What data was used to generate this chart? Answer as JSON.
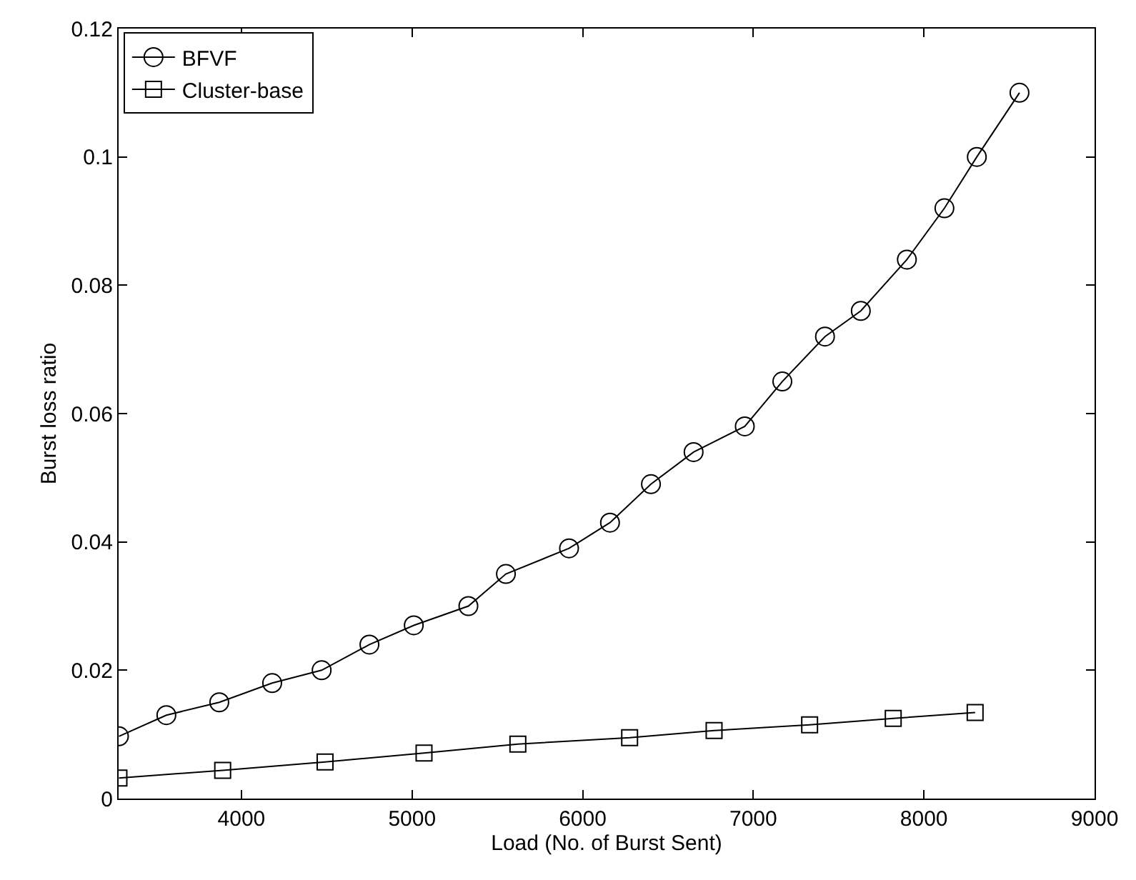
{
  "chart_data": {
    "type": "line",
    "xlabel": "Load (No. of Burst Sent)",
    "ylabel": "Burst loss ratio",
    "xlim": [
      3280,
      9000
    ],
    "xticks": [
      4000,
      5000,
      6000,
      7000,
      8000,
      9000
    ],
    "ylim": [
      0,
      0.12
    ],
    "yticks": [
      0,
      0.02,
      0.04,
      0.06,
      0.08,
      0.1,
      0.12
    ],
    "legend": "top left",
    "line_style": "solid",
    "series": [
      {
        "name": "BFVF",
        "color": "#000000",
        "marker": "circle",
        "x": [
          3282,
          3560,
          3870,
          4180,
          4470,
          4750,
          5010,
          5330,
          5550,
          5920,
          6160,
          6400,
          6650,
          6950,
          7170,
          7420,
          7630,
          7900,
          8120,
          8310,
          8560
        ],
        "values": [
          0.0097,
          0.013,
          0.015,
          0.018,
          0.02,
          0.024,
          0.027,
          0.03,
          0.035,
          0.039,
          0.043,
          0.049,
          0.054,
          0.058,
          0.065,
          0.072,
          0.076,
          0.084,
          0.092,
          0.1,
          0.11
        ]
      },
      {
        "name": "Cluster-base",
        "color": "#000000",
        "marker": "square",
        "x": [
          3282,
          3890,
          4490,
          5070,
          5620,
          6275,
          6770,
          7330,
          7820,
          8300
        ],
        "values": [
          0.0032,
          0.0044,
          0.0057,
          0.0071,
          0.0085,
          0.0095,
          0.0106,
          0.0115,
          0.0125,
          0.0134
        ]
      }
    ]
  }
}
